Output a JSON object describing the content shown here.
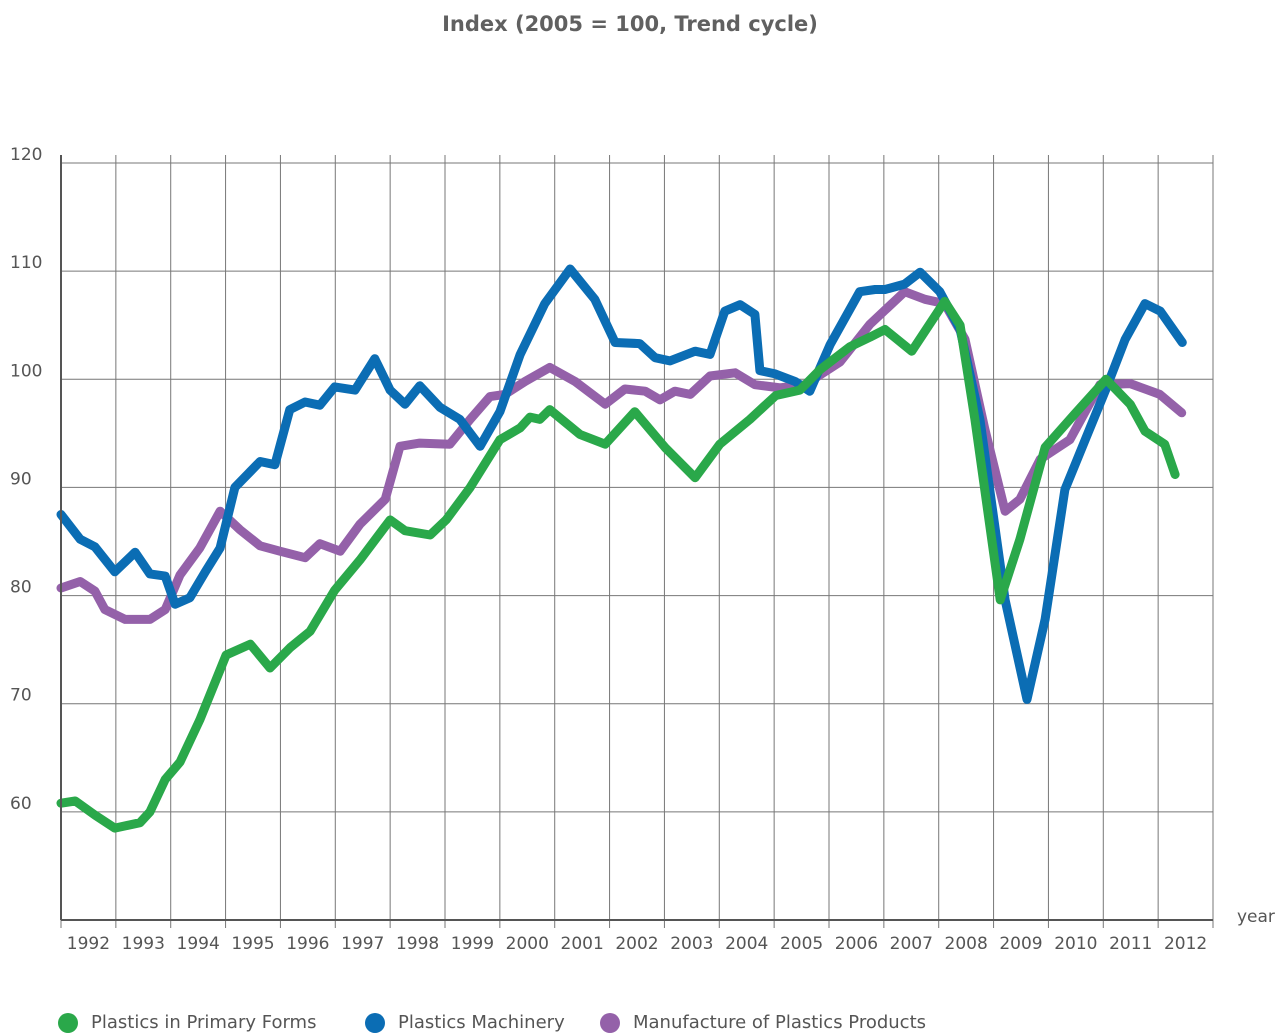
{
  "chart_data": {
    "type": "line",
    "title": "Index (2005 = 100, Trend cycle)",
    "x_label": "year",
    "xlim": [
      1992,
      2013
    ],
    "xticks": [
      1992,
      1993,
      1994,
      1995,
      1996,
      1997,
      1998,
      1999,
      2000,
      2001,
      2002,
      2003,
      2004,
      2005,
      2006,
      2007,
      2008,
      2009,
      2010,
      2011,
      2012
    ],
    "ylim": [
      50,
      120
    ],
    "yticks": [
      60,
      70,
      80,
      90,
      100,
      110,
      120
    ],
    "grid": true,
    "legend": "bottom",
    "series": [
      {
        "name": "Plastics in Primary Forms",
        "color": "#2aa84a",
        "x": [
          1992.0,
          1992.26,
          1992.62,
          1992.98,
          1993.44,
          1993.62,
          1993.9,
          1994.17,
          1994.53,
          1995.01,
          1995.45,
          1995.81,
          1996.18,
          1996.54,
          1996.99,
          1997.45,
          1998.0,
          1998.27,
          1998.73,
          1999.02,
          1999.46,
          2000.0,
          2000.37,
          2000.55,
          2000.73,
          2000.91,
          2001.46,
          2001.92,
          2002.46,
          2003.01,
          2003.56,
          2004.01,
          2004.56,
          2005.03,
          2005.47,
          2005.84,
          2006.38,
          2006.75,
          2007.02,
          2007.51,
          2008.11,
          2008.39,
          2008.66,
          2009.12,
          2009.48,
          2009.94,
          2010.48,
          2011.05,
          2011.49,
          2011.76,
          2012.12,
          2012.31
        ],
        "values": [
          60.8,
          61,
          59.7,
          58.5,
          59,
          60,
          63,
          64.6,
          68.5,
          74.5,
          75.5,
          73.3,
          75.2,
          76.7,
          80.5,
          83.3,
          87,
          86,
          85.6,
          87,
          90,
          94.4,
          95.5,
          96.5,
          96.3,
          97.2,
          94.9,
          94,
          97,
          93.7,
          90.9,
          94,
          96.3,
          98.5,
          99,
          100.9,
          103,
          103.9,
          104.6,
          102.6,
          107.2,
          105,
          96.3,
          79.6,
          85.2,
          93.7,
          96.8,
          100,
          97.7,
          95.2,
          94,
          91.2
        ]
      },
      {
        "name": "Plastics Machinery",
        "color": "#0b6db4",
        "x": [
          1992.0,
          1992.35,
          1992.62,
          1992.98,
          1993.35,
          1993.62,
          1993.9,
          1994.08,
          1994.35,
          1994.63,
          1994.9,
          1995.17,
          1995.63,
          1995.9,
          1996.17,
          1996.45,
          1996.72,
          1996.99,
          1997.36,
          1997.72,
          1998.0,
          1998.27,
          1998.54,
          1998.91,
          1999.27,
          1999.64,
          2000.0,
          2000.37,
          2000.82,
          2001.28,
          2001.73,
          2002.1,
          2002.55,
          2002.83,
          2003.1,
          2003.56,
          2003.83,
          2004.1,
          2004.38,
          2004.65,
          2004.74,
          2005.02,
          2005.38,
          2005.65,
          2006.02,
          2006.56,
          2006.84,
          2007.02,
          2007.38,
          2007.66,
          2008.02,
          2008.39,
          2008.75,
          2009.21,
          2009.61,
          2009.94,
          2010.3,
          2010.67,
          2011.05,
          2011.4,
          2011.76,
          2012.04,
          2012.44
        ],
        "values": [
          87.5,
          85.2,
          84.5,
          82.2,
          84,
          82,
          81.8,
          79.2,
          79.8,
          82.2,
          84.4,
          90,
          92.4,
          92.1,
          97.2,
          97.9,
          97.6,
          99.3,
          99,
          101.9,
          99,
          97.7,
          99.4,
          97.4,
          96.3,
          93.8,
          97,
          102.3,
          107,
          110.2,
          107.4,
          103.4,
          103.3,
          102,
          101.7,
          102.6,
          102.3,
          106.3,
          106.9,
          106,
          100.8,
          100.5,
          99.8,
          98.9,
          103.2,
          108.1,
          108.3,
          108.3,
          108.8,
          109.9,
          108.1,
          104.6,
          96.3,
          79.6,
          70.4,
          77.8,
          89.8,
          94.4,
          99.1,
          103.7,
          107,
          106.3,
          103.4
        ]
      },
      {
        "name": "Manufacture of Plastics Products",
        "color": "#9461a9",
        "x": [
          1992.0,
          1992.35,
          1992.62,
          1992.8,
          1993.17,
          1993.62,
          1993.9,
          1994.17,
          1994.53,
          1994.9,
          1995.26,
          1995.63,
          1995.99,
          1996.45,
          1996.72,
          1997.09,
          1997.45,
          1997.91,
          1998.18,
          1998.54,
          1999.09,
          1999.46,
          1999.82,
          2000.09,
          2000.46,
          2000.91,
          2001.37,
          2001.92,
          2002.28,
          2002.65,
          2002.92,
          2003.19,
          2003.47,
          2003.83,
          2004.29,
          2004.65,
          2005.11,
          2005.56,
          2006.2,
          2006.75,
          2007.38,
          2007.75,
          2008.11,
          2008.48,
          2008.84,
          2009.21,
          2009.48,
          2009.85,
          2010.39,
          2010.94,
          2011.49,
          2012.03,
          2012.43
        ],
        "values": [
          80.7,
          81.3,
          80.4,
          78.7,
          77.8,
          77.8,
          78.7,
          81.9,
          84.4,
          87.8,
          86.1,
          84.6,
          84.1,
          83.5,
          84.8,
          84.1,
          86.6,
          88.9,
          93.8,
          94.1,
          94,
          96.3,
          98.4,
          98.6,
          99.8,
          101.1,
          99.8,
          97.7,
          99.1,
          98.9,
          98.1,
          98.9,
          98.6,
          100.3,
          100.6,
          99.5,
          99.2,
          99.5,
          101.6,
          105.1,
          108.1,
          107.4,
          107,
          103.7,
          95.4,
          87.8,
          88.9,
          92.6,
          94.4,
          99.5,
          99.6,
          98.6,
          96.9
        ]
      }
    ]
  }
}
